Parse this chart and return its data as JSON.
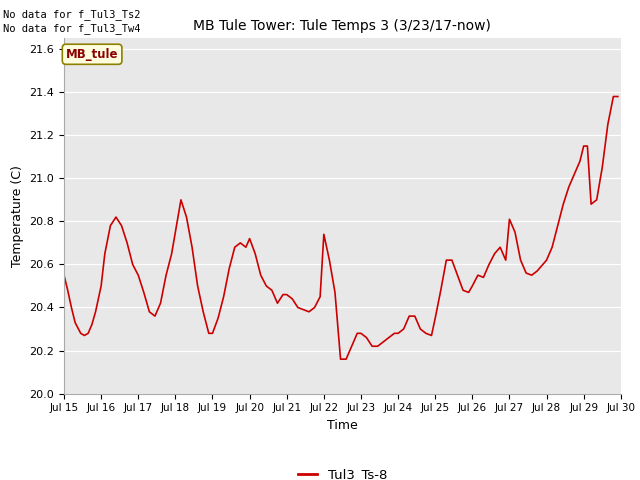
{
  "title": "MB Tule Tower: Tule Temps 3 (3/23/17-now)",
  "xlabel": "Time",
  "ylabel": "Temperature (C)",
  "text_no_data_1": "No data for f_Tul3_Ts2",
  "text_no_data_2": "No data for f_Tul3_Tw4",
  "legend_label": "Tul3_Ts-8",
  "legend_label_box": "MB_tule",
  "ylim": [
    20.0,
    21.65
  ],
  "yticks": [
    20.0,
    20.2,
    20.4,
    20.6,
    20.8,
    21.0,
    21.2,
    21.4,
    21.6
  ],
  "line_color": "#cc0000",
  "fig_bg_color": "#ffffff",
  "plot_bg_color": "#e8e8e8",
  "time_data": [
    15.0,
    15.1,
    15.2,
    15.3,
    15.45,
    15.55,
    15.65,
    15.75,
    15.85,
    16.0,
    16.1,
    16.25,
    16.4,
    16.55,
    16.7,
    16.85,
    17.0,
    17.15,
    17.3,
    17.45,
    17.6,
    17.75,
    17.9,
    18.0,
    18.15,
    18.3,
    18.45,
    18.6,
    18.75,
    18.9,
    19.0,
    19.15,
    19.3,
    19.45,
    19.6,
    19.75,
    19.9,
    20.0,
    20.15,
    20.3,
    20.45,
    20.6,
    20.75,
    20.9,
    21.0,
    21.15,
    21.3,
    21.45,
    21.6,
    21.75,
    21.9,
    22.0,
    22.15,
    22.3,
    22.45,
    22.6,
    22.75,
    22.9,
    23.0,
    23.15,
    23.3,
    23.45,
    23.6,
    23.75,
    23.9,
    24.0,
    24.15,
    24.3,
    24.45,
    24.6,
    24.75,
    24.9,
    25.0,
    25.15,
    25.3,
    25.45,
    25.6,
    25.75,
    25.9,
    26.0,
    26.15,
    26.3,
    26.45,
    26.6,
    26.75,
    26.9,
    27.0,
    27.15,
    27.3,
    27.45,
    27.6,
    27.75,
    27.9,
    28.0,
    28.15,
    28.3,
    28.45,
    28.6,
    28.75,
    28.9,
    29.0,
    29.1,
    29.2,
    29.35,
    29.5,
    29.65,
    29.8,
    29.92
  ],
  "temp_data": [
    20.55,
    20.48,
    20.4,
    20.33,
    20.28,
    20.27,
    20.28,
    20.32,
    20.38,
    20.5,
    20.65,
    20.78,
    20.82,
    20.78,
    20.7,
    20.6,
    20.55,
    20.47,
    20.38,
    20.36,
    20.42,
    20.55,
    20.65,
    20.75,
    20.9,
    20.82,
    20.68,
    20.5,
    20.38,
    20.28,
    20.28,
    20.35,
    20.45,
    20.58,
    20.68,
    20.7,
    20.68,
    20.72,
    20.65,
    20.55,
    20.5,
    20.48,
    20.42,
    20.46,
    20.46,
    20.44,
    20.4,
    20.39,
    20.38,
    20.4,
    20.45,
    20.74,
    20.62,
    20.47,
    20.16,
    20.16,
    20.22,
    20.28,
    20.28,
    20.26,
    20.22,
    20.22,
    20.24,
    20.26,
    20.28,
    20.28,
    20.3,
    20.36,
    20.36,
    20.3,
    20.28,
    20.27,
    20.35,
    20.48,
    20.62,
    20.62,
    20.55,
    20.48,
    20.47,
    20.5,
    20.55,
    20.54,
    20.6,
    20.65,
    20.68,
    20.62,
    20.81,
    20.75,
    20.62,
    20.56,
    20.55,
    20.57,
    20.6,
    20.62,
    20.68,
    20.78,
    20.88,
    20.96,
    21.02,
    21.08,
    21.15,
    21.15,
    20.88,
    20.9,
    21.05,
    21.25,
    21.38,
    21.38
  ]
}
